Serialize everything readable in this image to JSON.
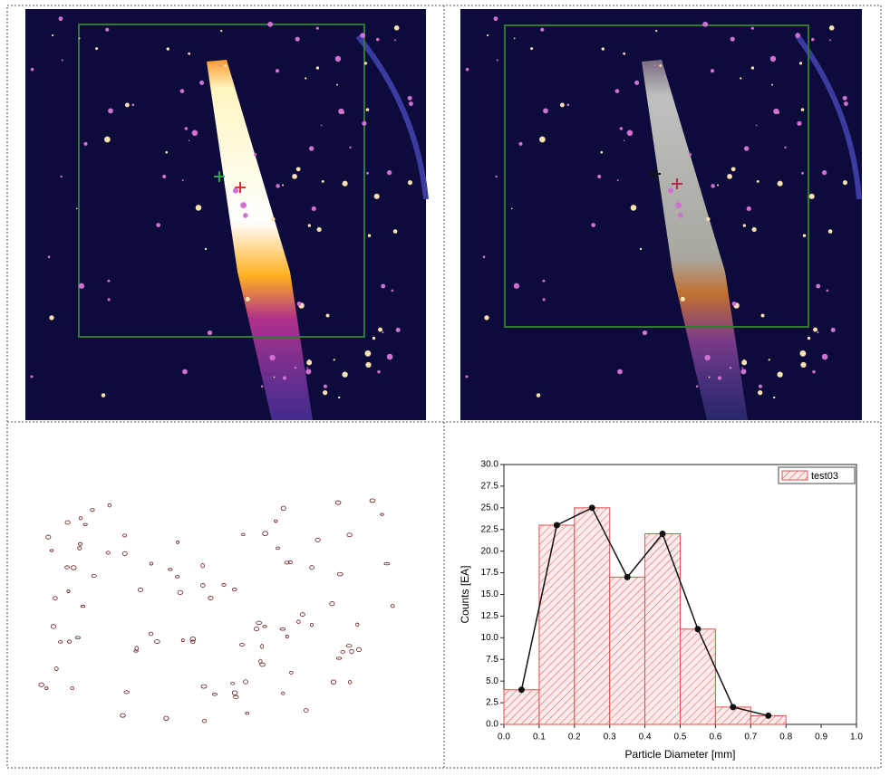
{
  "chart_data": {
    "type": "histogram",
    "xlabel": "Particle Diameter [mm]",
    "ylabel": "Counts [EA]",
    "bins": [
      0,
      0.1,
      0.2,
      0.3,
      0.4,
      0.5,
      0.6,
      0.7,
      0.8
    ],
    "series": [
      {
        "name": "test03",
        "color": "#e05050",
        "values": [
          4,
          23,
          25,
          17,
          22,
          11,
          2,
          1
        ]
      }
    ],
    "xlim": [
      0,
      1
    ],
    "xticks": [
      {
        "value": 0,
        "label": "0.0"
      },
      0.1,
      0.2,
      0.3,
      0.4,
      0.5,
      0.6,
      0.7,
      0.8,
      0.9,
      {
        "value": 1,
        "label": "1.0"
      }
    ],
    "ylim": [
      0,
      30
    ],
    "yticks": [
      {
        "value": 0,
        "label": "0.0"
      },
      2.5,
      {
        "value": 5,
        "label": "5.0"
      },
      7.5,
      {
        "value": 10,
        "label": "10.0"
      },
      12.5,
      {
        "value": 15,
        "label": "15.0"
      },
      17.5,
      {
        "value": 20,
        "label": "20.0"
      },
      22.5,
      {
        "value": 25,
        "label": "25.0"
      },
      27.5,
      {
        "value": 30,
        "label": "30.0"
      }
    ],
    "legend": "upper right"
  }
}
